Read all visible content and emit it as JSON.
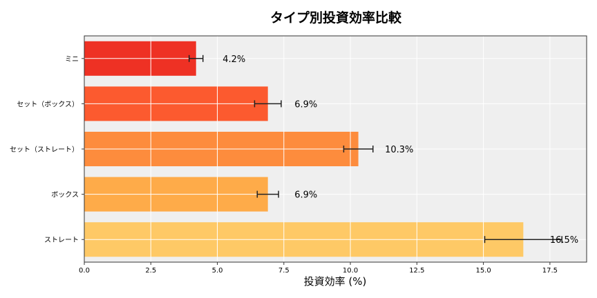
{
  "chart_data": {
    "type": "bar",
    "orientation": "horizontal",
    "title": "タイプ別投資効率比較",
    "xlabel": "投資効率 (%)",
    "ylabel": "",
    "categories": [
      "ミニ",
      "セット（ボックス）",
      "セット（ストレート）",
      "ボックス",
      "ストレート"
    ],
    "values": [
      4.2,
      6.9,
      10.3,
      6.9,
      16.5
    ],
    "errors": [
      0.26,
      0.5,
      0.55,
      0.4,
      1.45
    ],
    "data_labels": [
      "4.2%",
      "6.9%",
      "10.3%",
      "6.9%",
      "16.5%"
    ],
    "colors": [
      "#ee3124",
      "#fc5a2f",
      "#fd8c3d",
      "#feab49",
      "#fec966"
    ],
    "xlim": [
      0,
      18.88
    ],
    "xticks": [
      0,
      2.5,
      5,
      7.5,
      10,
      12.5,
      15,
      17.5
    ],
    "xtick_labels": [
      "0.0",
      "2.5",
      "5.0",
      "7.5",
      "10.0",
      "12.5",
      "15.0",
      "17.5"
    ],
    "grid": true,
    "background": "#efefef"
  }
}
